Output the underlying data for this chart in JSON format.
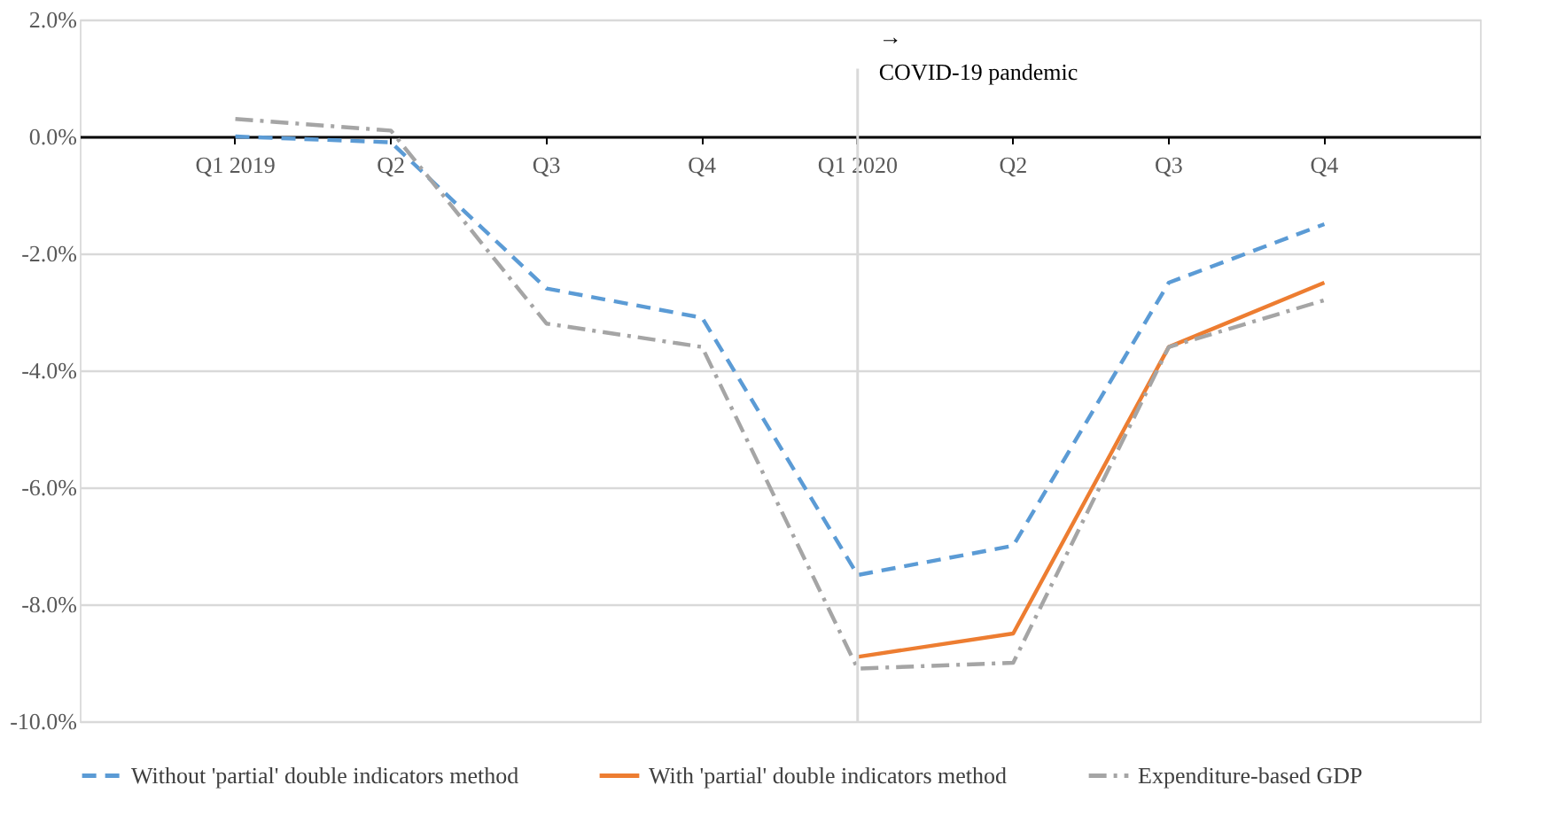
{
  "chart_data": {
    "type": "line",
    "categories": [
      "Q1 2019",
      "Q2",
      "Q3",
      "Q4",
      "Q1 2020",
      "Q2",
      "Q3",
      "Q4"
    ],
    "series": [
      {
        "name": "Without 'partial' double indicators method",
        "color": "#5b9bd5",
        "line_style": "dashed",
        "values": [
          0.0,
          -0.1,
          -2.6,
          -3.1,
          -7.5,
          -7.0,
          -2.5,
          -1.5
        ]
      },
      {
        "name": "With 'partial' double indicators method",
        "color": "#ed7d31",
        "line_style": "solid",
        "values": [
          null,
          null,
          null,
          null,
          -8.9,
          -8.5,
          -3.6,
          -2.5
        ]
      },
      {
        "name": "Expenditure-based GDP",
        "color": "#a5a5a5",
        "line_style": "dashdot",
        "values": [
          0.3,
          0.1,
          -3.2,
          -3.6,
          -9.1,
          -9.0,
          -3.6,
          -2.8
        ]
      }
    ],
    "ylim": [
      -10.0,
      2.0
    ],
    "yticks": [
      {
        "value": -10,
        "label": "-10.0%"
      },
      {
        "value": -8,
        "label": "-8.0%"
      },
      {
        "value": -6,
        "label": "-6.0%"
      },
      {
        "value": -4,
        "label": "-4.0%"
      },
      {
        "value": -2,
        "label": "-2.0%"
      },
      {
        "value": 0,
        "label": "0.0%"
      },
      {
        "value": 2,
        "label": "2.0%"
      }
    ],
    "grid": "y",
    "legend": "bottom",
    "marker": "none",
    "ref_lines": [
      {
        "axis": "x",
        "value": "Q1 2020",
        "label": "→\nCOVID-19 pandemic",
        "color": "#d9d9d9"
      }
    ]
  }
}
